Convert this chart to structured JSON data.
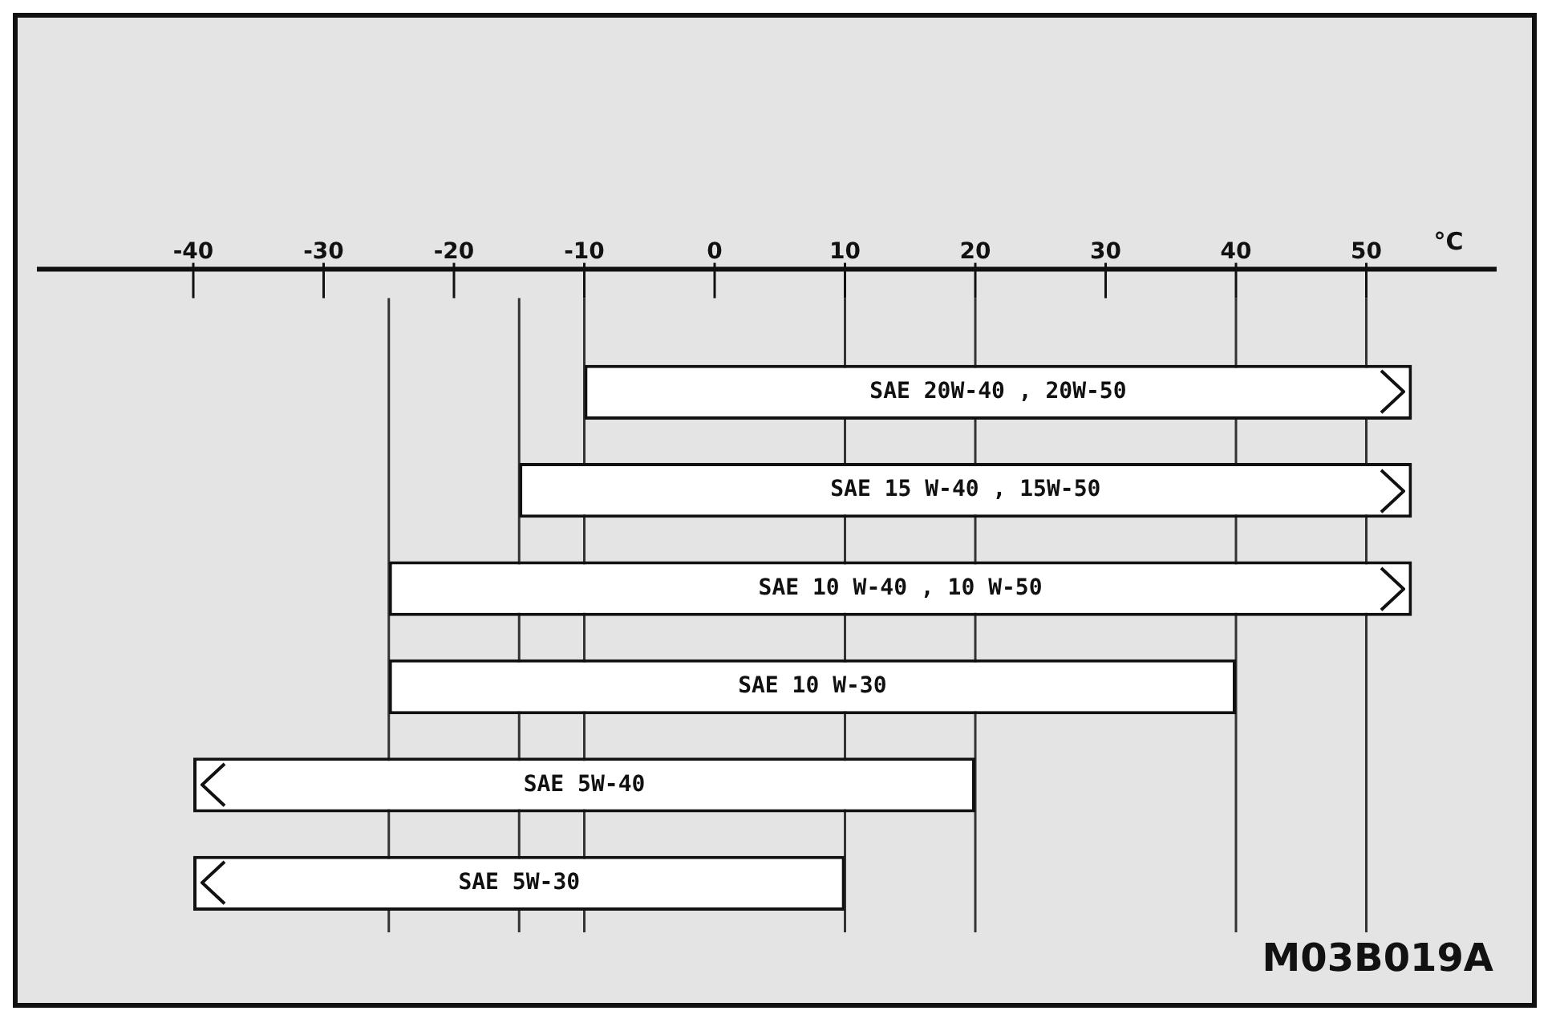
{
  "chart_data": {
    "type": "bar",
    "orientation": "horizontal",
    "xlabel": "°C",
    "categories": [
      "SAE 20W-40 , 20W-50",
      "SAE 15 W-40 , 15W-50",
      "SAE 10 W-40 , 10 W-50",
      "SAE 10 W-30",
      "SAE 5W-40",
      "SAE 5W-30"
    ],
    "base": [
      -10,
      -15,
      -25,
      -25,
      -40,
      -40
    ],
    "values": [
      63.5,
      68.5,
      78.5,
      65,
      60,
      50
    ],
    "color": "#ffffff",
    "xlim": [
      -52,
      60
    ],
    "xticks": [
      -40,
      -30,
      -20,
      -10,
      0,
      10,
      20,
      30,
      40,
      50
    ],
    "tick_labels": "x",
    "grid": false,
    "legend": false,
    "ref_lines": [
      {
        "axis": "x",
        "value": -25
      },
      {
        "axis": "x",
        "value": -15
      },
      {
        "axis": "x",
        "value": -10
      },
      {
        "axis": "x",
        "value": 10
      },
      {
        "axis": "x",
        "value": 20
      },
      {
        "axis": "x",
        "value": 40
      },
      {
        "axis": "x",
        "value": 50
      }
    ],
    "annotations": [
      "M03B019A"
    ]
  }
}
